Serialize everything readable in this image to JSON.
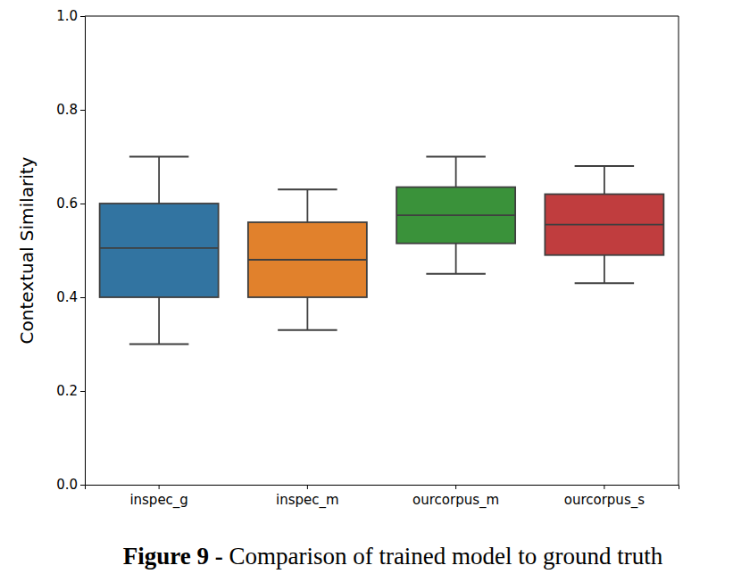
{
  "chart_data": {
    "type": "box",
    "title": "Figure 9 - Comparison of trained model to ground truth",
    "y_label": "Contextual Similarity",
    "categories": [
      "inspec_g",
      "inspec_m",
      "ourcorpus_m",
      "ourcorpus_s"
    ],
    "colors": [
      "#3274a1",
      "#e1812c",
      "#3a923a",
      "#c03d3e"
    ],
    "whisker_low": [
      0.3,
      0.33,
      0.45,
      0.43
    ],
    "q1": [
      0.4,
      0.4,
      0.515,
      0.49
    ],
    "median": [
      0.505,
      0.48,
      0.575,
      0.555
    ],
    "q3": [
      0.6,
      0.56,
      0.635,
      0.62
    ],
    "whisker_high": [
      0.7,
      0.63,
      0.7,
      0.68
    ],
    "ylim": [
      0,
      1
    ],
    "yticks": [
      {
        "value": 0,
        "label": "0.0"
      },
      {
        "value": 0.2,
        "label": "0.2"
      },
      {
        "value": 0.4,
        "label": "0.4"
      },
      {
        "value": 0.6,
        "label": "0.6"
      },
      {
        "value": 0.8,
        "label": "0.8"
      },
      {
        "value": 1,
        "label": "1.0"
      }
    ],
    "grid": false
  }
}
